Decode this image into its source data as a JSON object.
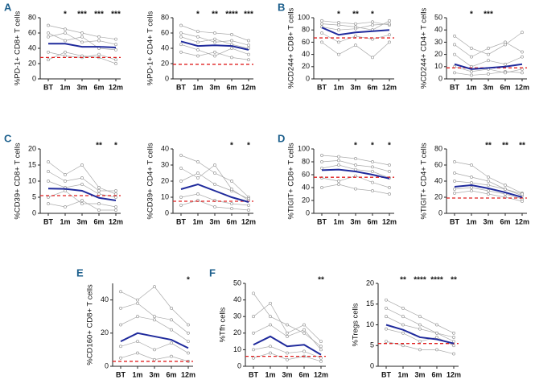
{
  "chart_data": [
    {
      "type": "line",
      "label": "A",
      "y_label": "%PD-1+ CD8+ T cells",
      "categories": [
        "BT",
        "1m",
        "3m",
        "6m",
        "12m"
      ],
      "ylim": [
        0,
        80
      ],
      "yticks": [
        0,
        20,
        40,
        60,
        80
      ],
      "mean": [
        46,
        46,
        42,
        42,
        41
      ],
      "threshold": 28,
      "annotations": [
        null,
        "*",
        "***",
        "***",
        "***"
      ],
      "individuals": [
        [
          70,
          65,
          60,
          55,
          52
        ],
        [
          35,
          30,
          28,
          32,
          25
        ],
        [
          55,
          60,
          48,
          50,
          45
        ],
        [
          25,
          35,
          30,
          28,
          20
        ],
        [
          60,
          50,
          55,
          40,
          38
        ]
      ],
      "mean_color": "#1f2a9c",
      "threshold_color": "#e02020",
      "individual_color": "#aaaaaa"
    },
    {
      "type": "line",
      "y_label": "%PD-1+ CD4+ T cells",
      "categories": [
        "BT",
        "1m",
        "3m",
        "6m",
        "12m"
      ],
      "ylim": [
        0,
        80
      ],
      "yticks": [
        0,
        20,
        40,
        60,
        80
      ],
      "mean": [
        49,
        43,
        44,
        43,
        38
      ],
      "threshold": 19,
      "annotations": [
        null,
        "*",
        "**",
        "****",
        "***"
      ],
      "individuals": [
        [
          70,
          62,
          60,
          58,
          50
        ],
        [
          35,
          30,
          35,
          28,
          25
        ],
        [
          55,
          48,
          52,
          45,
          40
        ],
        [
          45,
          38,
          30,
          40,
          32
        ],
        [
          60,
          55,
          48,
          50,
          44
        ]
      ],
      "mean_color": "#1f2a9c",
      "threshold_color": "#e02020",
      "individual_color": "#aaaaaa"
    },
    {
      "type": "line",
      "label": "B",
      "y_label": "%CD244+ CD8+ T cells",
      "categories": [
        "BT",
        "1m",
        "3m",
        "6m",
        "12m"
      ],
      "ylim": [
        0,
        100
      ],
      "yticks": [
        0,
        20,
        40,
        60,
        80,
        100
      ],
      "mean": [
        84,
        72,
        76,
        78,
        80
      ],
      "threshold": 67,
      "annotations": [
        null,
        "*",
        "**",
        "*",
        null
      ],
      "individuals": [
        [
          95,
          92,
          90,
          93,
          88
        ],
        [
          60,
          40,
          55,
          35,
          60
        ],
        [
          85,
          80,
          82,
          88,
          90
        ],
        [
          75,
          60,
          70,
          65,
          72
        ],
        [
          90,
          88,
          85,
          80,
          95
        ]
      ],
      "mean_color": "#1f2a9c",
      "threshold_color": "#e02020",
      "individual_color": "#aaaaaa"
    },
    {
      "type": "line",
      "y_label": "%CD244+ CD4+ T cells",
      "categories": [
        "BT",
        "1m",
        "3m",
        "6m",
        "12m"
      ],
      "ylim": [
        0,
        50
      ],
      "yticks": [
        0,
        10,
        20,
        30,
        40,
        50
      ],
      "mean": [
        12,
        8,
        9,
        10,
        12
      ],
      "threshold": 9,
      "annotations": [
        null,
        "*",
        "***",
        null,
        null
      ],
      "individuals": [
        [
          35,
          25,
          20,
          28,
          38
        ],
        [
          5,
          3,
          4,
          6,
          5
        ],
        [
          20,
          10,
          15,
          12,
          18
        ],
        [
          10,
          6,
          8,
          5,
          8
        ],
        [
          28,
          18,
          25,
          30,
          22
        ]
      ],
      "mean_color": "#1f2a9c",
      "threshold_color": "#e02020",
      "individual_color": "#aaaaaa"
    },
    {
      "type": "line",
      "label": "C",
      "y_label": "%CD39+ CD8+ T cells",
      "categories": [
        "BT",
        "1m",
        "3m",
        "6m",
        "12m"
      ],
      "ylim": [
        0,
        20
      ],
      "yticks": [
        0,
        5,
        10,
        15,
        20
      ],
      "mean": [
        7.7,
        7.6,
        7,
        4.8,
        4
      ],
      "threshold": 5.5,
      "annotations": [
        null,
        null,
        null,
        "**",
        "*"
      ],
      "individuals": [
        [
          16,
          12,
          15,
          8,
          6
        ],
        [
          3,
          2,
          4,
          1,
          1
        ],
        [
          10,
          8,
          9,
          6,
          5
        ],
        [
          5,
          7,
          3,
          3,
          2
        ],
        [
          13,
          10,
          11,
          7,
          7
        ]
      ],
      "mean_color": "#1f2a9c",
      "threshold_color": "#e02020",
      "individual_color": "#aaaaaa"
    },
    {
      "type": "line",
      "y_label": "%CD39+ CD4+ T cells",
      "categories": [
        "BT",
        "1m",
        "3m",
        "6m",
        "12m"
      ],
      "ylim": [
        0,
        40
      ],
      "yticks": [
        0,
        10,
        20,
        30,
        40
      ],
      "mean": [
        15,
        18,
        14,
        10,
        7
      ],
      "threshold": 7.5,
      "annotations": [
        null,
        null,
        null,
        "*",
        "*"
      ],
      "individuals": [
        [
          36,
          32,
          25,
          20,
          10
        ],
        [
          5,
          8,
          4,
          3,
          2
        ],
        [
          20,
          25,
          18,
          14,
          9
        ],
        [
          10,
          12,
          8,
          6,
          5
        ],
        [
          28,
          22,
          30,
          15,
          8
        ]
      ],
      "mean_color": "#1f2a9c",
      "threshold_color": "#e02020",
      "individual_color": "#aaaaaa"
    },
    {
      "type": "line",
      "label": "D",
      "y_label": "%TIGIT+ CD8+ T cells",
      "categories": [
        "BT",
        "1m",
        "3m",
        "6m",
        "12m"
      ],
      "ylim": [
        0,
        100
      ],
      "yticks": [
        0,
        20,
        40,
        60,
        80,
        100
      ],
      "mean": [
        67,
        68,
        65,
        60,
        54
      ],
      "threshold": 56,
      "annotations": [
        null,
        null,
        "*",
        "*",
        "*"
      ],
      "individuals": [
        [
          90,
          88,
          85,
          80,
          75
        ],
        [
          40,
          45,
          38,
          35,
          30
        ],
        [
          70,
          75,
          68,
          65,
          55
        ],
        [
          55,
          50,
          58,
          48,
          40
        ],
        [
          80,
          82,
          75,
          72,
          65
        ]
      ],
      "mean_color": "#1f2a9c",
      "threshold_color": "#e02020",
      "individual_color": "#aaaaaa"
    },
    {
      "type": "line",
      "y_label": "%TIGIT+ CD4+ T cells",
      "categories": [
        "BT",
        "1m",
        "3m",
        "6m",
        "12m"
      ],
      "ylim": [
        0,
        80
      ],
      "yticks": [
        0,
        20,
        40,
        60,
        80
      ],
      "mean": [
        33,
        35,
        31,
        26,
        20
      ],
      "threshold": 19,
      "annotations": [
        null,
        null,
        "**",
        "**",
        "**"
      ],
      "individuals": [
        [
          64,
          60,
          45,
          35,
          25
        ],
        [
          25,
          28,
          24,
          20,
          15
        ],
        [
          40,
          38,
          35,
          30,
          22
        ],
        [
          30,
          32,
          28,
          24,
          18
        ],
        [
          50,
          45,
          40,
          30,
          24
        ]
      ],
      "mean_color": "#1f2a9c",
      "threshold_color": "#e02020",
      "individual_color": "#aaaaaa"
    },
    {
      "type": "line",
      "label": "E",
      "y_label": "%CD160+ CD8+ T cells",
      "categories": [
        "BT",
        "1m",
        "3m",
        "6m",
        "12m"
      ],
      "ylim": [
        0,
        50
      ],
      "yticks": [
        0,
        20,
        40
      ],
      "mean": [
        15,
        20,
        18,
        16,
        11
      ],
      "threshold": 3,
      "annotations": [
        null,
        null,
        null,
        null,
        "*"
      ],
      "individuals": [
        [
          45,
          40,
          48,
          35,
          25
        ],
        [
          5,
          8,
          4,
          6,
          3
        ],
        [
          25,
          30,
          28,
          22,
          15
        ],
        [
          12,
          15,
          10,
          14,
          8
        ],
        [
          35,
          38,
          30,
          28,
          20
        ]
      ],
      "mean_color": "#1f2a9c",
      "threshold_color": "#e02020",
      "individual_color": "#aaaaaa"
    },
    {
      "type": "line",
      "label": "F",
      "y_label": "%Tfh cells",
      "categories": [
        "BT",
        "1m",
        "3m",
        "6m",
        "12m"
      ],
      "ylim": [
        0,
        50
      ],
      "yticks": [
        0,
        10,
        20,
        30,
        40,
        50
      ],
      "mean": [
        13,
        18,
        12,
        13,
        7
      ],
      "threshold": 6,
      "annotations": [
        null,
        null,
        null,
        null,
        "**"
      ],
      "individuals": [
        [
          44,
          30,
          25,
          20,
          12
        ],
        [
          5,
          8,
          4,
          6,
          3
        ],
        [
          20,
          25,
          18,
          22,
          10
        ],
        [
          10,
          12,
          8,
          9,
          5
        ],
        [
          30,
          38,
          20,
          25,
          15
        ]
      ],
      "mean_color": "#1f2a9c",
      "threshold_color": "#e02020",
      "individual_color": "#aaaaaa"
    },
    {
      "type": "line",
      "y_label": "%Tregs cells",
      "categories": [
        "BT",
        "1m",
        "3m",
        "6m",
        "12m"
      ],
      "ylim": [
        0,
        20
      ],
      "yticks": [
        0,
        5,
        10,
        15,
        20
      ],
      "mean": [
        10,
        8.8,
        7,
        6.5,
        5.5
      ],
      "threshold": 5.5,
      "annotations": [
        null,
        "**",
        "****",
        "****",
        "**"
      ],
      "individuals": [
        [
          16,
          14,
          12,
          10,
          8
        ],
        [
          6,
          5,
          4,
          4,
          3
        ],
        [
          12,
          10,
          9,
          8,
          6
        ],
        [
          9,
          8,
          6,
          7,
          5
        ],
        [
          14,
          12,
          10,
          8,
          7
        ]
      ],
      "mean_color": "#1f2a9c",
      "threshold_color": "#e02020",
      "individual_color": "#aaaaaa"
    }
  ]
}
